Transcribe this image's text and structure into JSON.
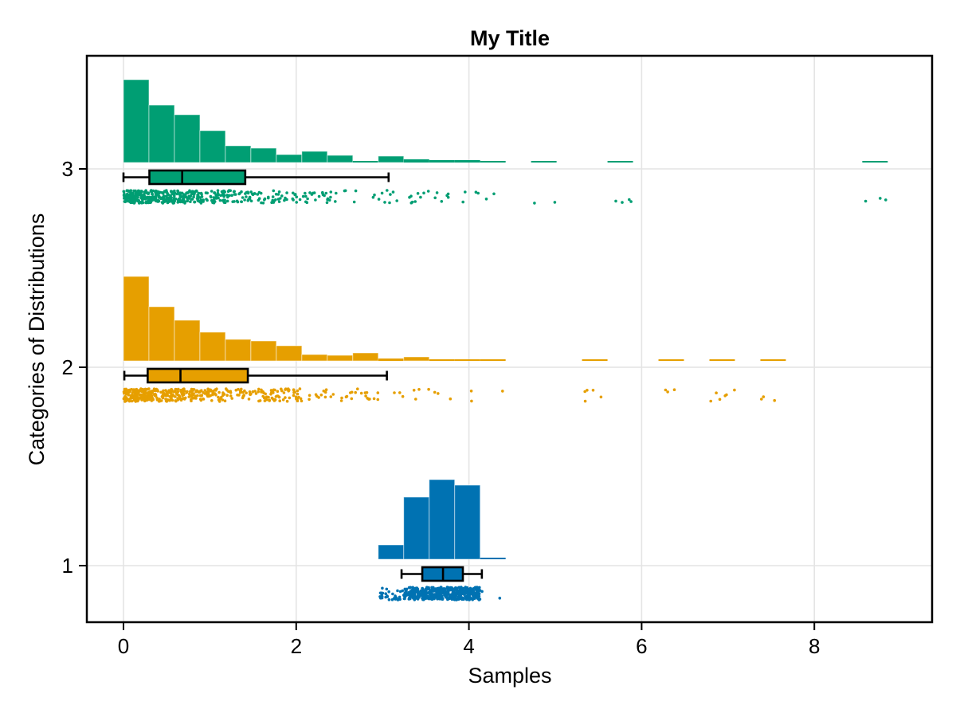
{
  "figure": {
    "title": "My Title",
    "xlabel": "Samples",
    "ylabel": "Categories of Distributions"
  },
  "chart_data": {
    "type": "raincloud",
    "components": [
      "histogram",
      "boxplot",
      "jittered-scatter"
    ],
    "title": "My Title",
    "xlabel": "Samples",
    "ylabel": "Categories of Distributions",
    "x_tick_labels": [
      "0",
      "2",
      "4",
      "6",
      "8"
    ],
    "x_tick_values": [
      0,
      2,
      4,
      6,
      8
    ],
    "y_tick_labels": [
      "1",
      "2",
      "3"
    ],
    "y_tick_values": [
      1,
      2,
      3
    ],
    "x_range": [
      -0.42,
      9.36
    ],
    "y_range": [
      0.71,
      3.57
    ],
    "grid": true,
    "legend": false,
    "background": "#ffffff",
    "grid_color": "#e4e4e4",
    "spine_color": "#000000",
    "series": [
      {
        "category": 3,
        "color": "#009E73",
        "hist": {
          "bin_start": 0.0,
          "bin_width": 0.295,
          "rel_heights": [
            104,
            72,
            60,
            40,
            21,
            18,
            10,
            14,
            9,
            2,
            8,
            4,
            3,
            3,
            2,
            0,
            2,
            0,
            0,
            2,
            0,
            0,
            0,
            0,
            0,
            0,
            0,
            0,
            0,
            2
          ]
        },
        "box": {
          "whisker_low": 0.0,
          "q1": 0.3,
          "median": 0.68,
          "q3": 1.41,
          "whisker_high": 3.07
        },
        "scatter": {
          "approx_n": 520,
          "x_min": 0.0,
          "x_max": 8.9
        }
      },
      {
        "category": 2,
        "color": "#E69F00",
        "hist": {
          "bin_start": 0.0,
          "bin_width": 0.295,
          "rel_heights": [
            106,
            68,
            51,
            36,
            27,
            25,
            19,
            8,
            7,
            10,
            3,
            5,
            2,
            2,
            2,
            0,
            0,
            0,
            2,
            0,
            0,
            2,
            0,
            2,
            0,
            2
          ]
        },
        "box": {
          "whisker_low": 0.01,
          "q1": 0.28,
          "median": 0.66,
          "q3": 1.44,
          "whisker_high": 3.05
        },
        "scatter": {
          "approx_n": 520,
          "x_min": 0.0,
          "x_max": 7.7
        }
      },
      {
        "category": 1,
        "color": "#0072B2",
        "hist": {
          "bin_start": 2.95,
          "bin_width": 0.295,
          "rel_heights": [
            18,
            78,
            100,
            93,
            2
          ]
        },
        "box": {
          "whisker_low": 3.22,
          "q1": 3.46,
          "median": 3.7,
          "q3": 3.93,
          "whisker_high": 4.15
        },
        "scatter": {
          "approx_n": 500,
          "x_min": 3.2,
          "x_max": 4.2
        }
      }
    ]
  }
}
